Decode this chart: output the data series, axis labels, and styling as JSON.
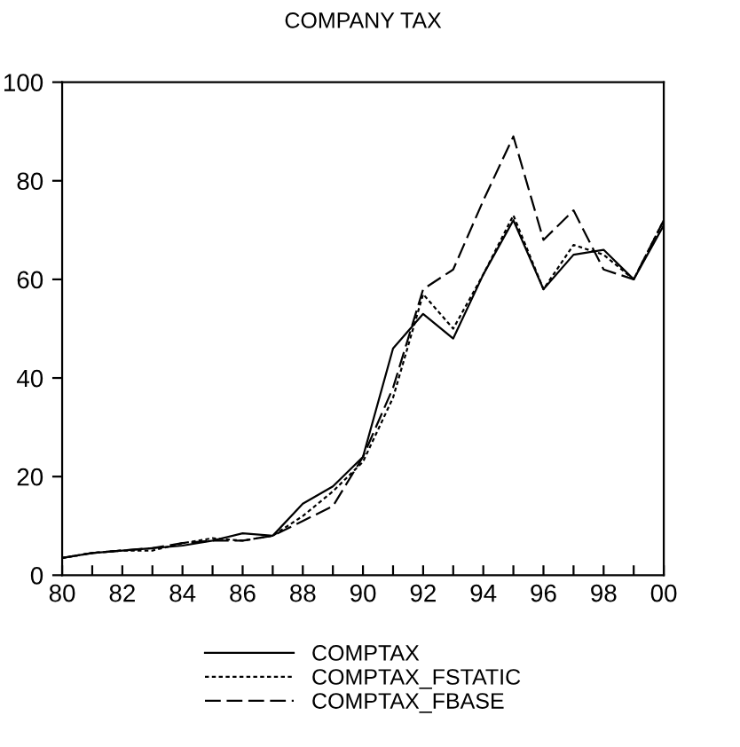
{
  "chart_data": {
    "type": "line",
    "title": "COMPANY TAX",
    "x": [
      1980,
      1981,
      1982,
      1983,
      1984,
      1985,
      1986,
      1987,
      1988,
      1989,
      1990,
      1991,
      1992,
      1993,
      1994,
      1995,
      1996,
      1997,
      1998,
      1999,
      2000
    ],
    "series": [
      {
        "name": "COMPTAX",
        "color": "#000000",
        "line_style": "solid",
        "values": [
          3.5,
          4.5,
          5,
          5.5,
          6,
          7,
          8.5,
          8,
          14.5,
          18,
          24,
          46,
          53,
          48,
          61,
          72,
          58,
          65,
          66,
          60,
          71
        ]
      },
      {
        "name": "COMPTAX_FSTATIC",
        "color": "#000000",
        "line_style": "dotted",
        "values": [
          3.5,
          4.5,
          5,
          5,
          6.5,
          7.5,
          7,
          8,
          12,
          17,
          23,
          36,
          57,
          50,
          61,
          73,
          58,
          67,
          65,
          60,
          72
        ]
      },
      {
        "name": "COMPTAX_FBASE",
        "color": "#000000",
        "line_style": "dashed",
        "values": [
          3.5,
          4.5,
          5,
          5.5,
          6.5,
          7,
          7,
          8,
          11,
          14,
          24,
          38,
          58,
          62,
          76,
          89,
          68,
          74,
          62,
          60,
          72
        ]
      }
    ],
    "xlim": [
      1980,
      2000
    ],
    "ylim": [
      0,
      100
    ],
    "xticks": [
      {
        "value": 1980,
        "label": "80"
      },
      {
        "value": 1981,
        "label": null
      },
      {
        "value": 1982,
        "label": "82"
      },
      {
        "value": 1983,
        "label": null
      },
      {
        "value": 1984,
        "label": "84"
      },
      {
        "value": 1985,
        "label": null
      },
      {
        "value": 1986,
        "label": "86"
      },
      {
        "value": 1987,
        "label": null
      },
      {
        "value": 1988,
        "label": "88"
      },
      {
        "value": 1989,
        "label": null
      },
      {
        "value": 1990,
        "label": "90"
      },
      {
        "value": 1991,
        "label": null
      },
      {
        "value": 1992,
        "label": "92"
      },
      {
        "value": 1993,
        "label": null
      },
      {
        "value": 1994,
        "label": "94"
      },
      {
        "value": 1995,
        "label": null
      },
      {
        "value": 1996,
        "label": "96"
      },
      {
        "value": 1997,
        "label": null
      },
      {
        "value": 1998,
        "label": "98"
      },
      {
        "value": 1999,
        "label": null
      },
      {
        "value": 2000,
        "label": "00"
      }
    ],
    "yticks": [
      0,
      20,
      40,
      60,
      80,
      100
    ],
    "legend": "bottom",
    "grid": false
  }
}
